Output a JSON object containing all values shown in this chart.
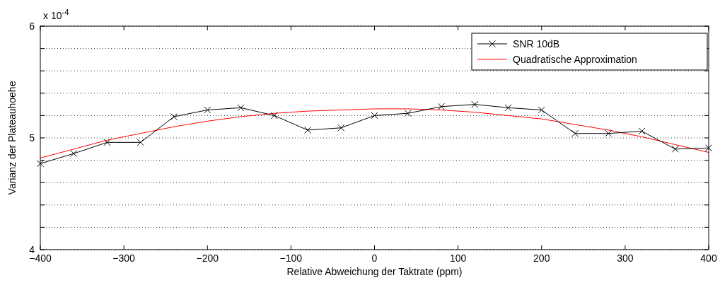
{
  "chart_data": {
    "type": "line",
    "xlabel": "Relative Abweichung der Taktrate (ppm)",
    "ylabel": "Varianz der Plateauhoehe",
    "annotations": [
      "x 10$^{-4}$"
    ],
    "x": [
      -400,
      -360,
      -320,
      -280,
      -240,
      -200,
      -160,
      -120,
      -80,
      -40,
      0,
      40,
      80,
      120,
      160,
      200,
      240,
      280,
      320,
      360,
      400
    ],
    "series": [
      {
        "name": "SNR 10dB",
        "color": "#000000",
        "marker": "cross",
        "values": [
          4.77,
          4.86,
          4.96,
          4.96,
          5.19,
          5.25,
          5.27,
          5.2,
          5.07,
          5.09,
          5.2,
          5.22,
          5.28,
          5.3,
          5.27,
          5.25,
          5.04,
          5.04,
          5.06,
          4.9,
          4.91
        ]
      },
      {
        "name": "Quadratische Approximation",
        "color": "#ff0000",
        "marker": "none",
        "values": [
          4.82,
          4.9,
          4.98,
          5.04,
          5.1,
          5.15,
          5.19,
          5.22,
          5.24,
          5.25,
          5.26,
          5.26,
          5.25,
          5.23,
          5.2,
          5.17,
          5.12,
          5.07,
          5.01,
          4.94,
          4.87
        ]
      }
    ],
    "xlim": [
      -400,
      400
    ],
    "xticks": [
      -400,
      -300,
      -200,
      -100,
      0,
      100,
      200,
      300,
      400
    ],
    "ylim": [
      4,
      6
    ],
    "yticks": [
      4,
      {
        "value": 4.2,
        "label": null
      },
      {
        "value": 4.4,
        "label": null
      },
      {
        "value": 4.6,
        "label": null
      },
      {
        "value": 4.8,
        "label": null
      },
      5,
      {
        "value": 5.2,
        "label": null
      },
      {
        "value": 5.4,
        "label": null
      },
      {
        "value": 5.6,
        "label": null
      },
      {
        "value": 5.8,
        "label": null
      },
      6
    ],
    "grid": "y",
    "legend": "top right",
    "line_style": "solid"
  }
}
